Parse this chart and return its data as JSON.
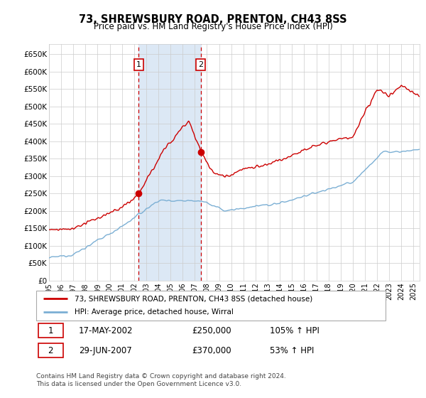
{
  "title": "73, SHREWSBURY ROAD, PRENTON, CH43 8SS",
  "subtitle": "Price paid vs. HM Land Registry's House Price Index (HPI)",
  "ylim": [
    0,
    680000
  ],
  "xlim_start": 1995.0,
  "xlim_end": 2025.5,
  "legend_line1": "73, SHREWSBURY ROAD, PRENTON, CH43 8SS (detached house)",
  "legend_line2": "HPI: Average price, detached house, Wirral",
  "sale1_date": "17-MAY-2002",
  "sale1_price": "£250,000",
  "sale1_hpi": "105% ↑ HPI",
  "sale1_year": 2002.38,
  "sale1_value": 250000,
  "sale2_date": "29-JUN-2007",
  "sale2_price": "£370,000",
  "sale2_hpi": "53% ↑ HPI",
  "sale2_year": 2007.49,
  "sale2_value": 370000,
  "footer": "Contains HM Land Registry data © Crown copyright and database right 2024.\nThis data is licensed under the Open Government Licence v3.0.",
  "red_color": "#cc0000",
  "blue_color": "#7bafd4",
  "span_color": "#dce8f5",
  "plot_bg_color": "#ffffff",
  "grid_color": "#cccccc",
  "legend_border": "#aaaaaa",
  "box_border": "#cc0000"
}
